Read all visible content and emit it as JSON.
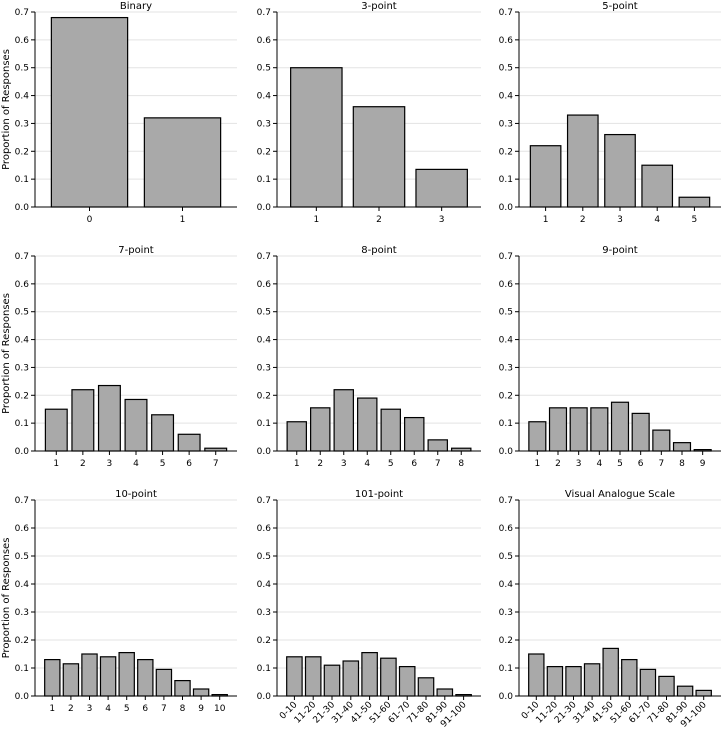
{
  "colors": {
    "bar_fill": "#a9a9a9",
    "bar_stroke": "#000000",
    "grid": "#e3e3e3",
    "axis": "#000000"
  },
  "ylabel": "Proportion of Responses",
  "yticks": [
    "0.0",
    "0.1",
    "0.2",
    "0.3",
    "0.4",
    "0.5",
    "0.6",
    "0.7"
  ],
  "chart_data": [
    {
      "type": "bar",
      "title": "Binary",
      "categories": [
        "0",
        "1"
      ],
      "values": [
        0.68,
        0.32
      ],
      "ylim": [
        0,
        0.7
      ],
      "ylabel": "Proportion of Responses"
    },
    {
      "type": "bar",
      "title": "3-point",
      "categories": [
        "1",
        "2",
        "3"
      ],
      "values": [
        0.5,
        0.36,
        0.135
      ],
      "ylim": [
        0,
        0.7
      ]
    },
    {
      "type": "bar",
      "title": "5-point",
      "categories": [
        "1",
        "2",
        "3",
        "4",
        "5"
      ],
      "values": [
        0.22,
        0.33,
        0.26,
        0.15,
        0.035
      ],
      "ylim": [
        0,
        0.7
      ]
    },
    {
      "type": "bar",
      "title": "7-point",
      "categories": [
        "1",
        "2",
        "3",
        "4",
        "5",
        "6",
        "7"
      ],
      "values": [
        0.15,
        0.22,
        0.235,
        0.185,
        0.13,
        0.06,
        0.01
      ],
      "ylim": [
        0,
        0.7
      ],
      "ylabel": "Proportion of Responses"
    },
    {
      "type": "bar",
      "title": "8-point",
      "categories": [
        "1",
        "2",
        "3",
        "4",
        "5",
        "6",
        "7",
        "8"
      ],
      "values": [
        0.105,
        0.155,
        0.22,
        0.19,
        0.15,
        0.12,
        0.04,
        0.01
      ],
      "ylim": [
        0,
        0.7
      ]
    },
    {
      "type": "bar",
      "title": "9-point",
      "categories": [
        "1",
        "2",
        "3",
        "4",
        "5",
        "6",
        "7",
        "8",
        "9"
      ],
      "values": [
        0.105,
        0.155,
        0.155,
        0.155,
        0.175,
        0.135,
        0.075,
        0.03,
        0.005
      ],
      "ylim": [
        0,
        0.7
      ]
    },
    {
      "type": "bar",
      "title": "10-point",
      "categories": [
        "1",
        "2",
        "3",
        "4",
        "5",
        "6",
        "7",
        "8",
        "9",
        "10"
      ],
      "values": [
        0.13,
        0.115,
        0.15,
        0.14,
        0.155,
        0.13,
        0.095,
        0.055,
        0.025,
        0.005
      ],
      "ylim": [
        0,
        0.7
      ],
      "ylabel": "Proportion of Responses"
    },
    {
      "type": "bar",
      "title": "101-point",
      "categories": [
        "0-10",
        "11-20",
        "21-30",
        "31-40",
        "41-50",
        "51-60",
        "61-70",
        "71-80",
        "81-90",
        "91-100"
      ],
      "values": [
        0.14,
        0.14,
        0.11,
        0.125,
        0.155,
        0.135,
        0.105,
        0.065,
        0.025,
        0.005
      ],
      "ylim": [
        0,
        0.7
      ],
      "rotate_labels": true
    },
    {
      "type": "bar",
      "title": "Visual Analogue Scale",
      "categories": [
        "0-10",
        "11-20",
        "21-30",
        "31-40",
        "41-50",
        "51-60",
        "61-70",
        "71-80",
        "81-90",
        "91-100"
      ],
      "values": [
        0.15,
        0.105,
        0.105,
        0.115,
        0.17,
        0.13,
        0.095,
        0.07,
        0.035,
        0.02
      ],
      "ylim": [
        0,
        0.7
      ],
      "rotate_labels": true
    }
  ]
}
